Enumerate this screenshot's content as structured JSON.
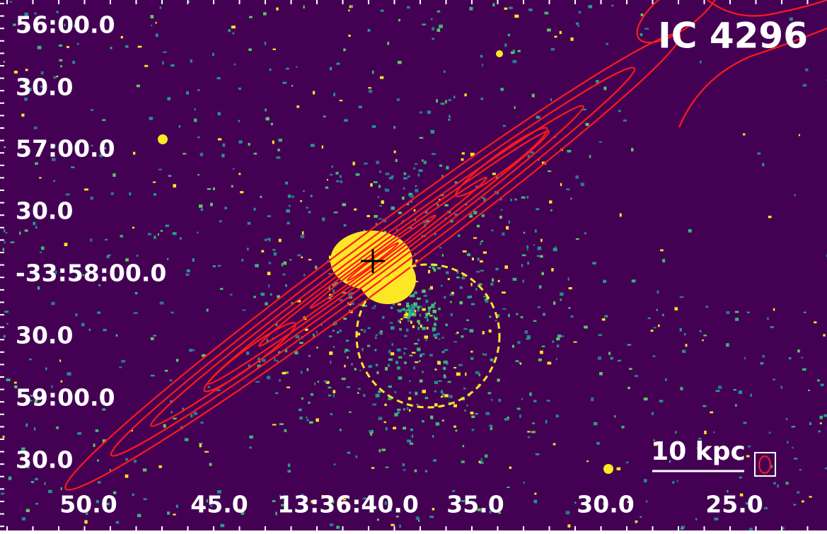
{
  "title": "IC 4296",
  "scale_bar": "10 kpc",
  "y_labels": [
    "56:00.0",
    "30.0",
    "57:00.0",
    "30.0",
    "-33:58:00.0",
    "30.0",
    "59:00.0",
    "30.0"
  ],
  "x_labels": [
    "50.0",
    "45.0",
    "13:36:40.0",
    "35.0",
    "30.0",
    "25.0"
  ]
}
